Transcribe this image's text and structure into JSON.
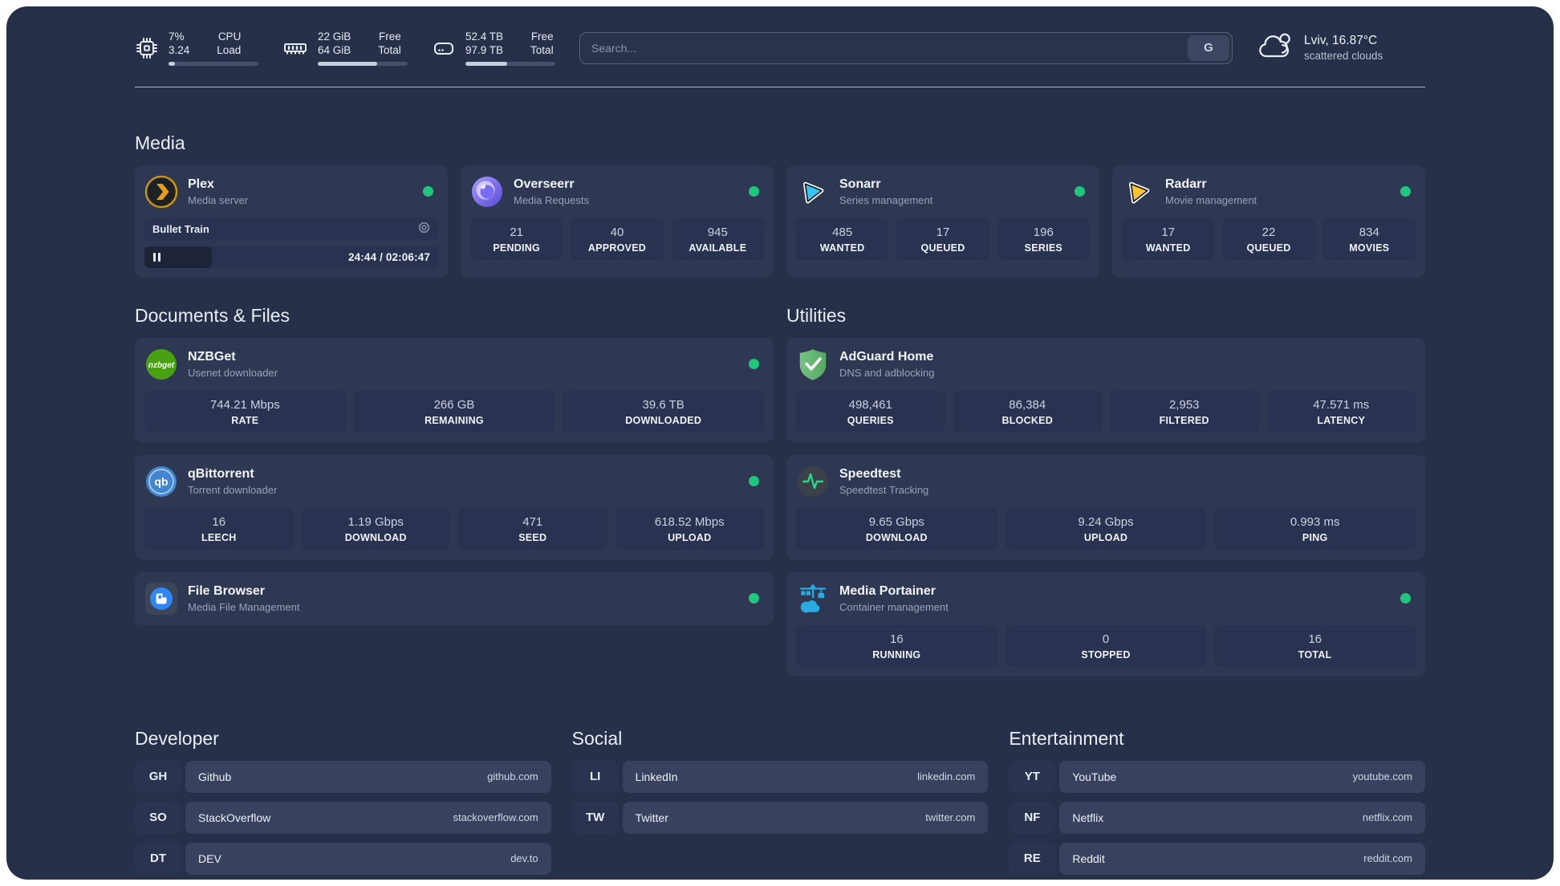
{
  "colors": {
    "accent_green": "#1fc77e",
    "plex_amber": "#e5a00d",
    "sonarr_blue": "#35c5f5",
    "radarr_yellow": "#ffc230",
    "adguard_green": "#67b279",
    "qbittorrent_blue": "#4285d3",
    "portainer_blue": "#29abe2",
    "nzbget_green": "#48a111",
    "overseerr_purple": "#8a7df0",
    "filebrowser_blue": "#2f86f5",
    "speedtest_green": "#2bd985"
  },
  "header": {
    "stats": [
      {
        "name": "cpu",
        "value_top": "7%",
        "value_bottom": "3.24",
        "label_top": "CPU",
        "label_bottom": "Load",
        "progress_pct": 7
      },
      {
        "name": "memory",
        "value_top": "22 GiB",
        "value_bottom": "64 GiB",
        "label_top": "Free",
        "label_bottom": "Total",
        "progress_pct": 66
      },
      {
        "name": "disk",
        "value_top": "52.4 TB",
        "value_bottom": "97.9 TB",
        "label_top": "Free",
        "label_bottom": "Total",
        "progress_pct": 46
      }
    ],
    "search": {
      "placeholder": "Search...",
      "provider_label": "G"
    },
    "weather": {
      "title": "Lviv, 16.87°C",
      "subtitle": "scattered clouds"
    }
  },
  "media": {
    "title": "Media",
    "plex": {
      "name": "Plex",
      "desc": "Media server",
      "status": "online",
      "now_playing": {
        "title": "Bullet Train",
        "time": "24:44 / 02:06:47",
        "progress_pct": 20
      }
    },
    "overseerr": {
      "name": "Overseerr",
      "desc": "Media Requests",
      "status": "online",
      "stats": [
        {
          "value": "21",
          "label": "PENDING"
        },
        {
          "value": "40",
          "label": "APPROVED"
        },
        {
          "value": "945",
          "label": "AVAILABLE"
        }
      ]
    },
    "sonarr": {
      "name": "Sonarr",
      "desc": "Series management",
      "status": "online",
      "stats": [
        {
          "value": "485",
          "label": "WANTED"
        },
        {
          "value": "17",
          "label": "QUEUED"
        },
        {
          "value": "196",
          "label": "SERIES"
        }
      ]
    },
    "radarr": {
      "name": "Radarr",
      "desc": "Movie management",
      "status": "online",
      "stats": [
        {
          "value": "17",
          "label": "WANTED"
        },
        {
          "value": "22",
          "label": "QUEUED"
        },
        {
          "value": "834",
          "label": "MOVIES"
        }
      ]
    }
  },
  "documents": {
    "title": "Documents & Files",
    "nzbget": {
      "name": "NZBGet",
      "desc": "Usenet downloader",
      "status": "online",
      "logo_text": "nzbget",
      "stats": [
        {
          "value": "744.21 Mbps",
          "label": "RATE"
        },
        {
          "value": "266 GB",
          "label": "REMAINING"
        },
        {
          "value": "39.6 TB",
          "label": "DOWNLOADED"
        }
      ]
    },
    "qbittorrent": {
      "name": "qBittorrent",
      "desc": "Torrent downloader",
      "status": "online",
      "logo_text": "qb",
      "stats": [
        {
          "value": "16",
          "label": "LEECH"
        },
        {
          "value": "1.19 Gbps",
          "label": "DOWNLOAD"
        },
        {
          "value": "471",
          "label": "SEED"
        },
        {
          "value": "618.52 Mbps",
          "label": "UPLOAD"
        }
      ]
    },
    "filebrowser": {
      "name": "File Browser",
      "desc": "Media File Management",
      "status": "online"
    }
  },
  "utilities": {
    "title": "Utilities",
    "adguard": {
      "name": "AdGuard Home",
      "desc": "DNS and adblocking",
      "stats": [
        {
          "value": "498,461",
          "label": "QUERIES"
        },
        {
          "value": "86,384",
          "label": "BLOCKED"
        },
        {
          "value": "2,953",
          "label": "FILTERED"
        },
        {
          "value": "47.571 ms",
          "label": "LATENCY"
        }
      ]
    },
    "speedtest": {
      "name": "Speedtest",
      "desc": "Speedtest Tracking",
      "stats": [
        {
          "value": "9.65 Gbps",
          "label": "DOWNLOAD"
        },
        {
          "value": "9.24 Gbps",
          "label": "UPLOAD"
        },
        {
          "value": "0.993 ms",
          "label": "PING"
        }
      ]
    },
    "portainer": {
      "name": "Media Portainer",
      "desc": "Container management",
      "status": "online",
      "stats": [
        {
          "value": "16",
          "label": "RUNNING"
        },
        {
          "value": "0",
          "label": "STOPPED"
        },
        {
          "value": "16",
          "label": "TOTAL"
        }
      ]
    }
  },
  "bookmarks": [
    {
      "title": "Developer",
      "items": [
        {
          "abbr": "GH",
          "name": "Github",
          "url": "github.com"
        },
        {
          "abbr": "SO",
          "name": "StackOverflow",
          "url": "stackoverflow.com"
        },
        {
          "abbr": "DT",
          "name": "DEV",
          "url": "dev.to"
        }
      ]
    },
    {
      "title": "Social",
      "items": [
        {
          "abbr": "LI",
          "name": "LinkedIn",
          "url": "linkedin.com"
        },
        {
          "abbr": "TW",
          "name": "Twitter",
          "url": "twitter.com"
        }
      ]
    },
    {
      "title": "Entertainment",
      "items": [
        {
          "abbr": "YT",
          "name": "YouTube",
          "url": "youtube.com"
        },
        {
          "abbr": "NF",
          "name": "Netflix",
          "url": "netflix.com"
        },
        {
          "abbr": "RE",
          "name": "Reddit",
          "url": "reddit.com"
        }
      ]
    }
  ]
}
